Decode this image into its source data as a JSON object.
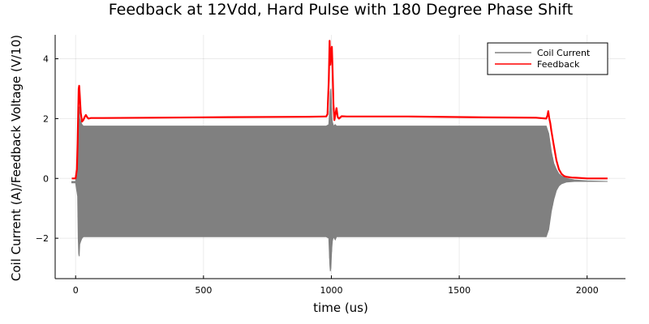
{
  "chart_data": {
    "type": "line",
    "title": "Feedback at 12Vdd, Hard Pulse with 180 Degree Phase Shift",
    "xlabel": "time (us)",
    "ylabel": "Coil Current (A)/Feedback Voltage (V/10)",
    "xlim": [
      -80,
      2150
    ],
    "ylim": [
      -3.35,
      4.8
    ],
    "xticks": [
      0,
      500,
      1000,
      1500,
      2000
    ],
    "xtick_labels": [
      "0",
      "500",
      "1000",
      "1500",
      "2000"
    ],
    "yticks": [
      -2,
      0,
      2,
      4
    ],
    "ytick_labels": [
      "−2",
      "0",
      "2",
      "4"
    ],
    "grid": true,
    "legend_position": "top-right",
    "series": [
      {
        "name": "Coil Current",
        "color": "#808080",
        "style": "dense-oscillation",
        "x": [
          -15,
          0,
          8,
          10,
          12,
          14,
          16,
          20,
          25,
          30,
          35,
          40,
          50,
          100,
          300,
          600,
          900,
          980,
          990,
          994,
          996,
          998,
          1000,
          1002,
          1004,
          1008,
          1015,
          1020,
          1030,
          1040,
          1100,
          1300,
          1600,
          1800,
          1840,
          1850,
          1860,
          1870,
          1880,
          1890,
          1900,
          1920,
          1950,
          2000,
          2080
        ],
        "upper": [
          -0.1,
          -0.1,
          0.5,
          1.6,
          2.2,
          2.4,
          2.0,
          1.9,
          1.8,
          1.75,
          1.75,
          1.75,
          1.75,
          1.75,
          1.75,
          1.75,
          1.75,
          1.75,
          1.8,
          2.4,
          2.9,
          3.0,
          2.6,
          2.1,
          1.9,
          1.75,
          1.8,
          1.75,
          1.75,
          1.75,
          1.75,
          1.75,
          1.75,
          1.75,
          1.75,
          1.5,
          0.9,
          0.5,
          0.3,
          0.15,
          0.08,
          0.0,
          -0.05,
          -0.08,
          -0.1
        ],
        "lower": [
          -0.15,
          -0.15,
          -0.6,
          -2.0,
          -2.5,
          -2.6,
          -2.2,
          -2.1,
          -2.0,
          -1.95,
          -1.95,
          -1.95,
          -1.95,
          -1.95,
          -1.95,
          -1.95,
          -1.95,
          -1.95,
          -2.0,
          -2.9,
          -3.1,
          -3.0,
          -2.6,
          -2.3,
          -2.1,
          -1.95,
          -2.05,
          -1.95,
          -1.95,
          -1.95,
          -1.95,
          -1.95,
          -1.95,
          -1.95,
          -1.95,
          -1.7,
          -1.1,
          -0.7,
          -0.4,
          -0.25,
          -0.18,
          -0.12,
          -0.1,
          -0.1,
          -0.1
        ]
      },
      {
        "name": "Feedback",
        "color": "#ff0000",
        "style": "line",
        "x": [
          -15,
          0,
          5,
          8,
          10,
          12,
          14,
          16,
          20,
          25,
          30,
          35,
          40,
          45,
          50,
          60,
          100,
          300,
          600,
          900,
          975,
          980,
          985,
          990,
          993,
          996,
          999,
          1002,
          1005,
          1008,
          1012,
          1016,
          1020,
          1025,
          1030,
          1040,
          1060,
          1100,
          1300,
          1600,
          1800,
          1840,
          1845,
          1848,
          1852,
          1856,
          1860,
          1870,
          1880,
          1890,
          1900,
          1910,
          1920,
          1940,
          1960,
          2000,
          2080
        ],
        "y": [
          0.0,
          0.0,
          0.3,
          1.2,
          2.2,
          3.0,
          3.1,
          2.8,
          2.2,
          1.9,
          1.95,
          2.05,
          2.12,
          2.05,
          2.0,
          2.02,
          2.02,
          2.03,
          2.05,
          2.06,
          2.07,
          2.07,
          2.15,
          3.3,
          4.6,
          3.8,
          4.3,
          4.4,
          3.6,
          2.5,
          1.95,
          2.15,
          2.35,
          2.05,
          2.0,
          2.08,
          2.07,
          2.07,
          2.07,
          2.04,
          2.03,
          2.0,
          2.1,
          2.25,
          2.0,
          1.85,
          1.6,
          1.1,
          0.6,
          0.3,
          0.15,
          0.08,
          0.05,
          0.03,
          0.02,
          0.0,
          0.0
        ]
      }
    ]
  }
}
